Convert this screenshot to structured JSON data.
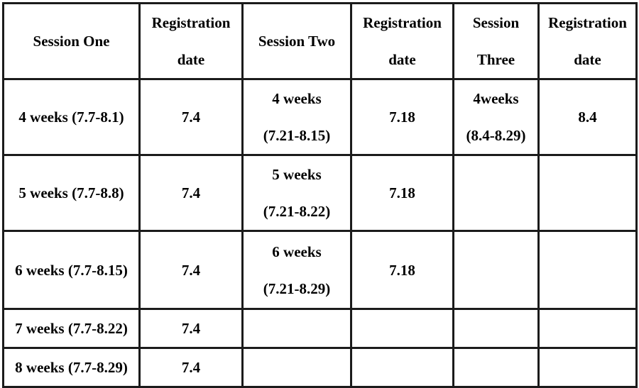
{
  "page": {
    "background_color": "#ffffff"
  },
  "table": {
    "name": "summer-session-registration-schedule",
    "border_color": "#1b1b1b",
    "text_color": "#000000",
    "headers": [
      "Session One",
      "Registration\ndate",
      "Session Two",
      "Registration\ndate",
      "Session\nThree",
      "Registration\ndate"
    ],
    "rows": [
      {
        "cells": [
          "4 weeks (7.7-8.1)",
          "7.4",
          "4 weeks\n(7.21-8.15)",
          "7.18",
          "4weeks\n(8.4-8.29)",
          "8.4"
        ]
      },
      {
        "cells": [
          "5 weeks (7.7-8.8)",
          "7.4",
          "5 weeks\n(7.21-8.22)",
          "7.18",
          "",
          ""
        ]
      },
      {
        "cells": [
          "6 weeks (7.7-8.15)",
          "7.4",
          "6 weeks\n(7.21-8.29)",
          "7.18",
          "",
          ""
        ]
      },
      {
        "cells": [
          "7 weeks (7.7-8.22)",
          "7.4",
          "",
          "",
          "",
          ""
        ]
      },
      {
        "cells": [
          "8 weeks (7.7-8.29)",
          "7.4",
          "",
          "",
          "",
          ""
        ]
      }
    ]
  }
}
